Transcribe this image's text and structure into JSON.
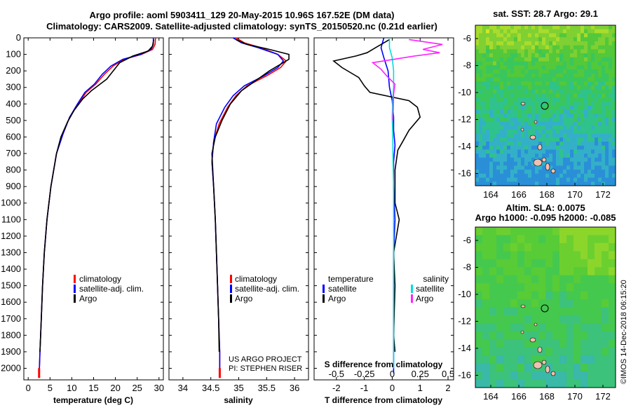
{
  "header": {
    "title_line1": "Argo profile: aoml 5903411_129 20-May-2015 10.96S 167.52E (DM data)",
    "title_line2": "Climatology: CARS2009. Satellite-adjusted climatology: synTS_20150520.nc (0.21d earlier)"
  },
  "colors": {
    "climatology": "#ff0000",
    "satellite": "#0000ff",
    "argo": "#000000",
    "satellite_salinity": "#00dddd",
    "argo_salinity": "#ff22ff"
  },
  "chart_data": [
    {
      "id": "temperature",
      "type": "line",
      "xlabel": "temperature (deg C)",
      "ylabel": "",
      "xlim": [
        -1,
        31
      ],
      "ylim": [
        2070,
        0
      ],
      "xticks": [
        0,
        5,
        10,
        15,
        20,
        25,
        30
      ],
      "yticks": [
        0,
        100,
        200,
        300,
        400,
        500,
        600,
        700,
        800,
        900,
        1000,
        1100,
        1200,
        1300,
        1400,
        1500,
        1600,
        1700,
        1800,
        1900,
        2000
      ],
      "legend": [
        "climatology",
        "satellite-adj. clim.",
        "Argo"
      ],
      "series": [
        {
          "name": "climatology",
          "color": "red",
          "points": [
            [
              29.2,
              0
            ],
            [
              29.1,
              40
            ],
            [
              28.5,
              70
            ],
            [
              26,
              100
            ],
            [
              22,
              130
            ],
            [
              19.5,
              170
            ],
            [
              17.5,
              220
            ],
            [
              15.5,
              280
            ],
            [
              13.3,
              330
            ],
            [
              11.5,
              400
            ],
            [
              9.5,
              480
            ],
            [
              8,
              580
            ],
            [
              6.5,
              700
            ],
            [
              5.2,
              900
            ],
            [
              4.3,
              1100
            ],
            [
              3.7,
              1300
            ],
            [
              3.3,
              1500
            ],
            [
              3,
              1700
            ],
            [
              2.7,
              1900
            ],
            [
              2.5,
              2050
            ]
          ]
        },
        {
          "name": "satellite-adj. clim.",
          "color": "blue",
          "points": [
            [
              28.7,
              0
            ],
            [
              28.7,
              40
            ],
            [
              28.2,
              70
            ],
            [
              25.8,
              100
            ],
            [
              21.7,
              130
            ],
            [
              19,
              170
            ],
            [
              17,
              220
            ],
            [
              15.2,
              280
            ],
            [
              13,
              330
            ],
            [
              11.3,
              400
            ],
            [
              9.5,
              480
            ],
            [
              8,
              580
            ],
            [
              6.5,
              700
            ],
            [
              5.2,
              900
            ],
            [
              4.3,
              1100
            ],
            [
              3.7,
              1300
            ],
            [
              3.3,
              1500
            ],
            [
              3,
              1700
            ],
            [
              2.7,
              1900
            ],
            [
              2.5,
              2050
            ]
          ]
        },
        {
          "name": "Argo",
          "color": "black",
          "points": [
            [
              28.8,
              10
            ],
            [
              28.5,
              50
            ],
            [
              27.5,
              80
            ],
            [
              24,
              110
            ],
            [
              21,
              150
            ],
            [
              19.5,
              200
            ],
            [
              18,
              250
            ],
            [
              16,
              290
            ],
            [
              14.5,
              320
            ],
            [
              12.5,
              370
            ],
            [
              10.5,
              440
            ],
            [
              9,
              510
            ],
            [
              7.5,
              600
            ],
            [
              6.5,
              700
            ],
            [
              5.2,
              900
            ],
            [
              4.3,
              1100
            ],
            [
              3.7,
              1300
            ],
            [
              3.3,
              1500
            ],
            [
              3,
              1700
            ],
            [
              2.7,
              1900
            ]
          ]
        }
      ]
    },
    {
      "id": "salinity",
      "type": "line",
      "xlabel": "salinity",
      "ylabel": "",
      "xlim": [
        33.75,
        36.25
      ],
      "ylim": [
        2070,
        0
      ],
      "xticks": [
        34,
        34.5,
        35,
        35.5,
        36
      ],
      "xticklabels": [
        "34",
        "34.5",
        "35",
        "35.5",
        "36"
      ],
      "legend": [
        "climatology",
        "satellite-adj. clim.",
        "Argo"
      ],
      "series": [
        {
          "name": "climatology",
          "color": "red",
          "points": [
            [
              34.95,
              0
            ],
            [
              35.1,
              30
            ],
            [
              35.4,
              60
            ],
            [
              35.7,
              100
            ],
            [
              35.85,
              140
            ],
            [
              35.75,
              180
            ],
            [
              35.5,
              230
            ],
            [
              35.15,
              290
            ],
            [
              34.95,
              350
            ],
            [
              34.8,
              420
            ],
            [
              34.65,
              520
            ],
            [
              34.55,
              630
            ],
            [
              34.52,
              750
            ],
            [
              34.55,
              900
            ],
            [
              34.58,
              1100
            ],
            [
              34.6,
              1300
            ],
            [
              34.62,
              1500
            ],
            [
              34.64,
              1700
            ],
            [
              34.66,
              1900
            ],
            [
              34.66,
              2050
            ]
          ]
        },
        {
          "name": "satellite-adj. clim.",
          "color": "blue",
          "points": [
            [
              34.9,
              0
            ],
            [
              35.05,
              30
            ],
            [
              35.35,
              60
            ],
            [
              35.7,
              100
            ],
            [
              35.8,
              140
            ],
            [
              35.7,
              180
            ],
            [
              35.45,
              230
            ],
            [
              35.1,
              290
            ],
            [
              34.9,
              350
            ],
            [
              34.75,
              420
            ],
            [
              34.6,
              520
            ],
            [
              34.55,
              630
            ],
            [
              34.52,
              750
            ],
            [
              34.55,
              900
            ],
            [
              34.58,
              1100
            ],
            [
              34.6,
              1300
            ],
            [
              34.62,
              1500
            ],
            [
              34.64,
              1700
            ],
            [
              34.66,
              1900
            ],
            [
              34.66,
              2050
            ]
          ]
        },
        {
          "name": "Argo",
          "color": "black",
          "points": [
            [
              34.95,
              10
            ],
            [
              35.15,
              40
            ],
            [
              35.55,
              70
            ],
            [
              35.9,
              100
            ],
            [
              35.9,
              130
            ],
            [
              35.75,
              160
            ],
            [
              35.55,
              200
            ],
            [
              35.3,
              260
            ],
            [
              35.05,
              320
            ],
            [
              34.85,
              400
            ],
            [
              34.7,
              500
            ],
            [
              34.58,
              600
            ],
            [
              34.52,
              700
            ],
            [
              34.55,
              900
            ],
            [
              34.58,
              1100
            ],
            [
              34.6,
              1300
            ],
            [
              34.62,
              1500
            ],
            [
              34.64,
              1700
            ],
            [
              34.65,
              1900
            ]
          ]
        }
      ]
    },
    {
      "id": "difference",
      "type": "line",
      "xlabel": "T difference from climatology",
      "ylabel": "",
      "xlabel_top": "S difference from climatology",
      "xlim": [
        -2.8,
        2.2
      ],
      "ylim": [
        2070,
        0
      ],
      "xticks": [
        -2,
        -1,
        0,
        1,
        2
      ],
      "xticklabels": [
        "-2",
        "-1",
        "0",
        "1",
        "2"
      ],
      "sticks": [
        -0.5,
        -0.25,
        0,
        0.25,
        0.5
      ],
      "sticklabels": [
        "-0.5",
        "-0.25",
        "0",
        "0.25",
        "0.5"
      ],
      "legend_temperature": {
        "title": "temperature",
        "items": [
          "satellite",
          "Argo"
        ]
      },
      "legend_salinity": {
        "title": "salinity",
        "items": [
          "satellite",
          "Argo"
        ]
      },
      "series": [
        {
          "name": "T satellite",
          "color": "blue",
          "points": [
            [
              -0.3,
              0
            ],
            [
              -0.4,
              60
            ],
            [
              -0.3,
              120
            ],
            [
              -0.15,
              200
            ],
            [
              -0.1,
              300
            ],
            [
              0,
              380
            ],
            [
              0.05,
              480
            ],
            [
              0.05,
              560
            ],
            [
              0.1,
              650
            ],
            [
              0.05,
              750
            ],
            [
              0.05,
              900
            ],
            [
              0.1,
              1100
            ],
            [
              0.05,
              1300
            ],
            [
              0.05,
              1500
            ],
            [
              0.05,
              1800
            ],
            [
              0.05,
              2030
            ]
          ]
        },
        {
          "name": "T Argo",
          "color": "black",
          "points": [
            [
              -0.1,
              10
            ],
            [
              -0.6,
              60
            ],
            [
              -0.9,
              90
            ],
            [
              -1.3,
              110
            ],
            [
              -2.1,
              140
            ],
            [
              -1.8,
              180
            ],
            [
              -1.2,
              240
            ],
            [
              -1,
              290
            ],
            [
              -0.8,
              330
            ],
            [
              0.6,
              380
            ],
            [
              0.9,
              420
            ],
            [
              1,
              480
            ],
            [
              0.6,
              560
            ],
            [
              0.4,
              620
            ],
            [
              0.2,
              680
            ],
            [
              0.1,
              800
            ],
            [
              0.1,
              1000
            ],
            [
              0.25,
              1100
            ],
            [
              0.05,
              1300
            ],
            [
              0.1,
              1500
            ],
            [
              0.05,
              1800
            ],
            [
              0.1,
              1900
            ]
          ]
        },
        {
          "name": "S satellite",
          "color": "cyan",
          "points": [
            [
              -0.1,
              0
            ],
            [
              -0.1,
              60
            ],
            [
              0,
              120
            ],
            [
              0.05,
              200
            ],
            [
              0.05,
              300
            ],
            [
              0.02,
              380
            ],
            [
              0,
              480
            ],
            [
              0.02,
              600
            ],
            [
              0.03,
              750
            ],
            [
              0.05,
              900
            ],
            [
              0.05,
              1100
            ],
            [
              0.05,
              1300
            ],
            [
              0.05,
              1500
            ],
            [
              0.05,
              1700
            ],
            [
              0.05,
              2000
            ]
          ]
        },
        {
          "name": "S Argo",
          "color": "magenta",
          "points": [
            [
              0.6,
              10
            ],
            [
              1.8,
              40
            ],
            [
              1.1,
              70
            ],
            [
              1.7,
              90
            ],
            [
              0.8,
              110
            ],
            [
              -0.7,
              150
            ],
            [
              -0.4,
              190
            ],
            [
              -0.2,
              230
            ],
            [
              0.1,
              280
            ],
            [
              0.05,
              340
            ],
            [
              0.04,
              420
            ],
            [
              0.02,
              500
            ]
          ]
        }
      ]
    }
  ],
  "annotation": {
    "line1": "US ARGO PROJECT",
    "line2": "PI: STEPHEN RISER"
  },
  "maps": {
    "sst": {
      "title": "sat. SST: 28.7 Argo: 29.1",
      "xticks": [
        "164",
        "166",
        "168",
        "170",
        "172"
      ],
      "yticks": [
        "-6",
        "-8",
        "-10",
        "-12",
        "-14",
        "-16"
      ]
    },
    "sla": {
      "title_line1": "Altim. SLA: 0.0075",
      "title_line2": "Argo h1000: -0.095 h2000: -0.085",
      "xticks": [
        "164",
        "166",
        "168",
        "170",
        "172"
      ],
      "yticks": [
        "-6",
        "-8",
        "-10",
        "-12",
        "-14",
        "-16"
      ]
    }
  },
  "footer": {
    "timestamp": "©IMOS 14-Dec-2018 06:15:20"
  }
}
